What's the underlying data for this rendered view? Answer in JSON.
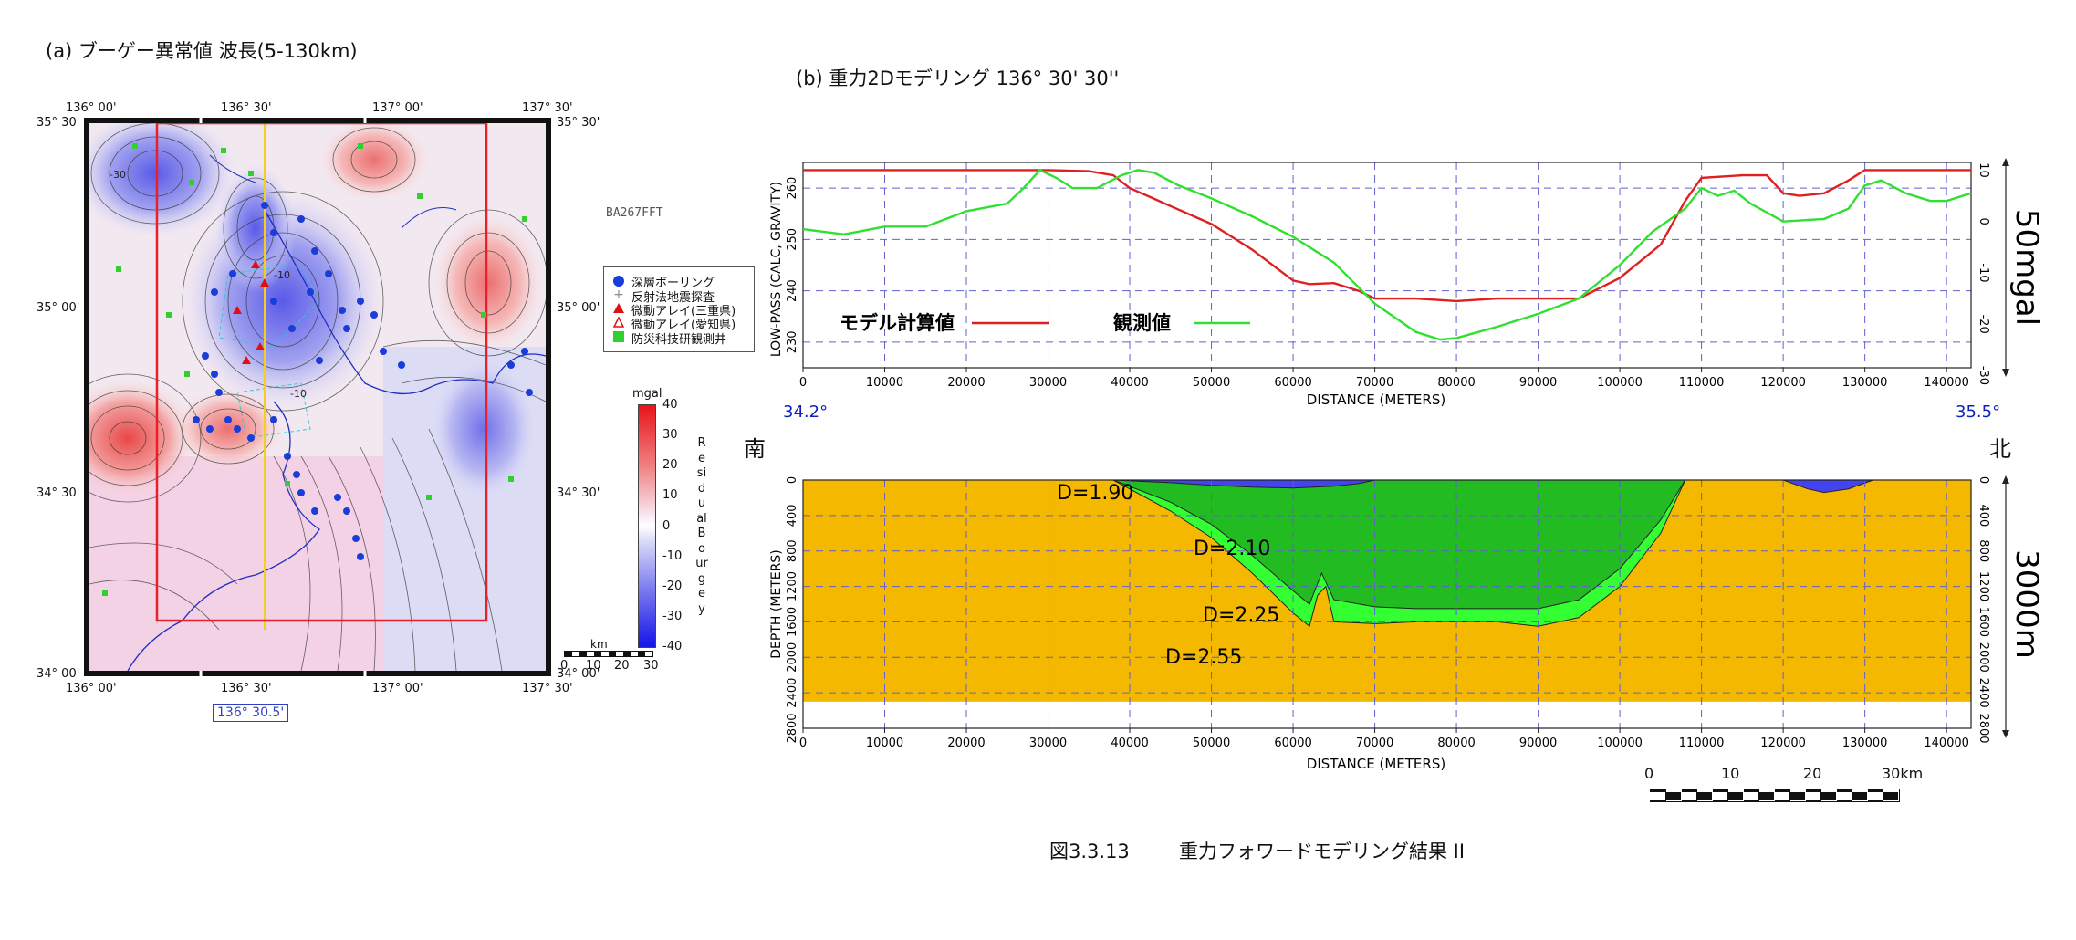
{
  "panel_a": {
    "title": "(a) ブーゲー異常値  波長(5-130km)",
    "code_label": "BA267FFT",
    "lon_ticks": [
      "136° 00'",
      "136° 30'",
      "137° 00'",
      "137° 30'"
    ],
    "lat_ticks": [
      "35° 30'",
      "35° 00'",
      "34° 30'",
      "34° 00'"
    ],
    "profile_label": "136°  30.5'",
    "contour_labels": [
      "-10",
      "-10",
      "-30"
    ],
    "colors": {
      "red_box": "#e8202a",
      "profile_line": "#f0d020",
      "coast": "#2030c0"
    },
    "legend": [
      {
        "symbol": "circle-blue",
        "label": "深層ボーリング",
        "color": "#1a3cd8"
      },
      {
        "symbol": "plus-gray",
        "label": "反射法地震探査",
        "color": "#888888"
      },
      {
        "symbol": "triangle-red-filled",
        "label": "微動アレイ(三重県)",
        "color": "#e01010"
      },
      {
        "symbol": "triangle-red-open",
        "label": "微動アレイ(愛知県)",
        "color": "#e01010"
      },
      {
        "symbol": "square-green",
        "label": "防災科技研観測井",
        "color": "#30d030"
      }
    ],
    "colorbar": {
      "unit": "mgal",
      "ticks": [
        "40",
        "30",
        "20",
        "10",
        "0",
        "-10",
        "-20",
        "-30",
        "-40"
      ],
      "label": "Residual Bourgey",
      "top_color": "#e8141a",
      "bottom_color": "#1414e8"
    },
    "scale": {
      "unit": "km",
      "ticks": [
        "0",
        "10",
        "20",
        "30"
      ]
    }
  },
  "panel_b": {
    "title": "(b) 重力2Dモデリング  136°  30' 30''",
    "upper_chart": {
      "ylabel": "LOW-PASS (CALC, GRAVITY)",
      "xlabel": "DISTANCE (METERS)",
      "right_label": "50mgal",
      "left_ticks": [
        "260",
        "250",
        "240",
        "230"
      ],
      "right_ticks": [
        "10",
        "0",
        "-10",
        "-20",
        "-30"
      ],
      "series_label_model": "モデル計算値",
      "series_label_obs": "観測値"
    },
    "lat_left": "34.2°",
    "lat_right": "35.5°",
    "south_label": "南",
    "north_label": "北",
    "lower_chart": {
      "ylabel": "DEPTH (METERS)",
      "xlabel": "DISTANCE (METERS)",
      "right_label": "3000m",
      "depth_ticks": [
        "0",
        "400",
        "800",
        "1200",
        "1600",
        "2000",
        "2400",
        "2800"
      ],
      "layer_labels": [
        "D=1.90",
        "D=2.10",
        "D=2.25",
        "D=2.55"
      ]
    },
    "scale_bar": {
      "ticks": [
        "0",
        "10",
        "20",
        "30km"
      ]
    }
  },
  "chart_data": [
    {
      "type": "line",
      "title": "",
      "xlabel": "DISTANCE (METERS)",
      "ylabel": "LOW-PASS (CALC, GRAVITY)",
      "xlim": [
        0,
        143000
      ],
      "ylim": [
        225,
        265
      ],
      "x_ticks": [
        0,
        10000,
        20000,
        30000,
        40000,
        50000,
        60000,
        70000,
        80000,
        90000,
        100000,
        110000,
        120000,
        130000,
        140000
      ],
      "grid": true,
      "series": [
        {
          "name": "モデル計算値",
          "color": "#e02020",
          "x": [
            0,
            10000,
            20000,
            30000,
            35000,
            38000,
            40000,
            45000,
            50000,
            55000,
            60000,
            62000,
            65000,
            68000,
            70000,
            75000,
            80000,
            85000,
            90000,
            95000,
            100000,
            105000,
            108000,
            110000,
            115000,
            118000,
            120000,
            122000,
            125000,
            128000,
            130000,
            135000,
            140000,
            143000
          ],
          "y": [
            263.5,
            263.5,
            263.5,
            263.5,
            263.3,
            262.5,
            260,
            256.5,
            253,
            248,
            242,
            241.3,
            241.5,
            240,
            238.5,
            238.5,
            238,
            238.5,
            238.5,
            238.5,
            242.5,
            249,
            257.5,
            262,
            262.5,
            262.5,
            259,
            258.5,
            259,
            261.5,
            263.5,
            263.5,
            263.5,
            263.5
          ]
        },
        {
          "name": "観測値",
          "color": "#30e030",
          "x": [
            0,
            5000,
            10000,
            15000,
            20000,
            25000,
            27000,
            29000,
            31000,
            33000,
            36000,
            39000,
            41000,
            43000,
            46000,
            50000,
            55000,
            60000,
            65000,
            70000,
            75000,
            78000,
            80000,
            85000,
            90000,
            95000,
            100000,
            104000,
            108000,
            110000,
            112000,
            114000,
            116000,
            120000,
            125000,
            128000,
            130000,
            132000,
            135000,
            138000,
            140000,
            143000
          ],
          "y": [
            252,
            251,
            252.5,
            252.5,
            255.5,
            257,
            260,
            263.5,
            262,
            260,
            260,
            262.5,
            263.5,
            263,
            260.5,
            258,
            254.5,
            250.5,
            245.5,
            237.5,
            232,
            230.5,
            230.8,
            233,
            235.5,
            238.5,
            245,
            251.5,
            256,
            260,
            258.5,
            259.5,
            257,
            253.5,
            254,
            256,
            260.5,
            261.5,
            259,
            257.5,
            257.5,
            259
          ]
        }
      ]
    },
    {
      "type": "area",
      "title": "",
      "xlabel": "DISTANCE (METERS)",
      "ylabel": "DEPTH (METERS)",
      "xlim": [
        0,
        143000
      ],
      "ylim": [
        2800,
        0
      ],
      "x_ticks": [
        0,
        10000,
        20000,
        30000,
        40000,
        50000,
        60000,
        70000,
        80000,
        90000,
        100000,
        110000,
        120000,
        130000,
        140000
      ],
      "grid": true,
      "layers": [
        {
          "name": "D=2.55",
          "color": "#f5b800",
          "top_depth": 0,
          "bottom_depth": 2500
        },
        {
          "name": "D=2.25",
          "color": "#33ff33",
          "x": [
            38000,
            45000,
            50000,
            55000,
            60000,
            62000,
            63000,
            64000,
            65000,
            70000,
            75000,
            80000,
            85000,
            90000,
            95000,
            100000,
            105000,
            107000,
            108000
          ],
          "bottom_depth": [
            0,
            350,
            650,
            1050,
            1500,
            1650,
            1300,
            1200,
            1600,
            1620,
            1600,
            1600,
            1600,
            1650,
            1550,
            1200,
            600,
            200,
            0
          ]
        },
        {
          "name": "D=2.10",
          "color": "#22bb22",
          "x": [
            38000,
            45000,
            50000,
            55000,
            60000,
            62000,
            63500,
            65000,
            70000,
            75000,
            80000,
            85000,
            90000,
            95000,
            100000,
            105000,
            107000,
            108000
          ],
          "bottom_depth": [
            0,
            250,
            500,
            850,
            1250,
            1400,
            1050,
            1350,
            1430,
            1450,
            1450,
            1450,
            1450,
            1350,
            1000,
            450,
            150,
            0
          ]
        },
        {
          "name": "D=1.90",
          "color": "#4444ee",
          "x": [
            38000,
            45000,
            50000,
            55000,
            60000,
            65000,
            68000,
            70000,
            120000,
            123000,
            125000,
            128000,
            131000
          ],
          "bottom_depth": [
            0,
            30,
            60,
            80,
            90,
            70,
            40,
            0,
            0,
            100,
            140,
            100,
            0
          ]
        }
      ]
    }
  ],
  "caption": {
    "fig_no": "図3.3.13",
    "text": "重力フォワードモデリング結果 II"
  }
}
